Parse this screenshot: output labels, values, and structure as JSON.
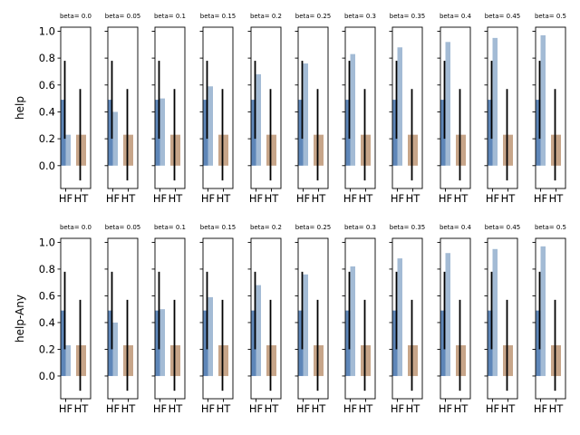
{
  "colors": {
    "hf_mean": "#5e86b8",
    "hf_light": "#a3bbd5",
    "ht": "#c7a589",
    "error_bar": "#000000",
    "axes": "#000000"
  },
  "chart_data": {
    "type": "bar",
    "categories": [
      "HF",
      "HT"
    ],
    "ylim": [
      -0.17,
      1.03
    ],
    "yticks": [
      "0.0",
      "0.2",
      "0.4",
      "0.6",
      "0.8",
      "1.0"
    ],
    "panel_titles": [
      "beta= 0.0",
      "beta= 0.05",
      "beta= 0.1",
      "beta= 0.15",
      "beta= 0.2",
      "beta= 0.25",
      "beta= 0.3",
      "beta= 0.35",
      "beta= 0.4",
      "beta= 0.45",
      "beta= 0.5"
    ],
    "rows": [
      {
        "ylabel": "help",
        "hf_mean": [
          0.49,
          0.49,
          0.49,
          0.49,
          0.49,
          0.49,
          0.49,
          0.49,
          0.49,
          0.49,
          0.49
        ],
        "hf_mean_err": [
          0.29,
          0.29,
          0.29,
          0.29,
          0.29,
          0.29,
          0.29,
          0.29,
          0.29,
          0.29,
          0.29
        ],
        "hf_beta": [
          0.23,
          0.4,
          0.5,
          0.59,
          0.68,
          0.76,
          0.83,
          0.88,
          0.92,
          0.95,
          0.97
        ],
        "ht_mean": [
          0.23,
          0.23,
          0.23,
          0.23,
          0.23,
          0.23,
          0.23,
          0.23,
          0.23,
          0.23,
          0.23
        ],
        "ht_err": [
          0.34,
          0.34,
          0.34,
          0.34,
          0.34,
          0.34,
          0.34,
          0.34,
          0.34,
          0.34,
          0.34
        ]
      },
      {
        "ylabel": "help-Any",
        "hf_mean": [
          0.49,
          0.49,
          0.49,
          0.49,
          0.49,
          0.49,
          0.49,
          0.49,
          0.49,
          0.49,
          0.49
        ],
        "hf_mean_err": [
          0.29,
          0.29,
          0.29,
          0.29,
          0.29,
          0.29,
          0.29,
          0.29,
          0.29,
          0.29,
          0.29
        ],
        "hf_beta": [
          0.23,
          0.4,
          0.5,
          0.59,
          0.68,
          0.76,
          0.82,
          0.88,
          0.92,
          0.95,
          0.97
        ],
        "ht_mean": [
          0.23,
          0.23,
          0.23,
          0.23,
          0.23,
          0.23,
          0.23,
          0.23,
          0.23,
          0.23,
          0.23
        ],
        "ht_err": [
          0.34,
          0.34,
          0.34,
          0.34,
          0.34,
          0.34,
          0.34,
          0.34,
          0.34,
          0.34,
          0.34
        ]
      }
    ]
  }
}
